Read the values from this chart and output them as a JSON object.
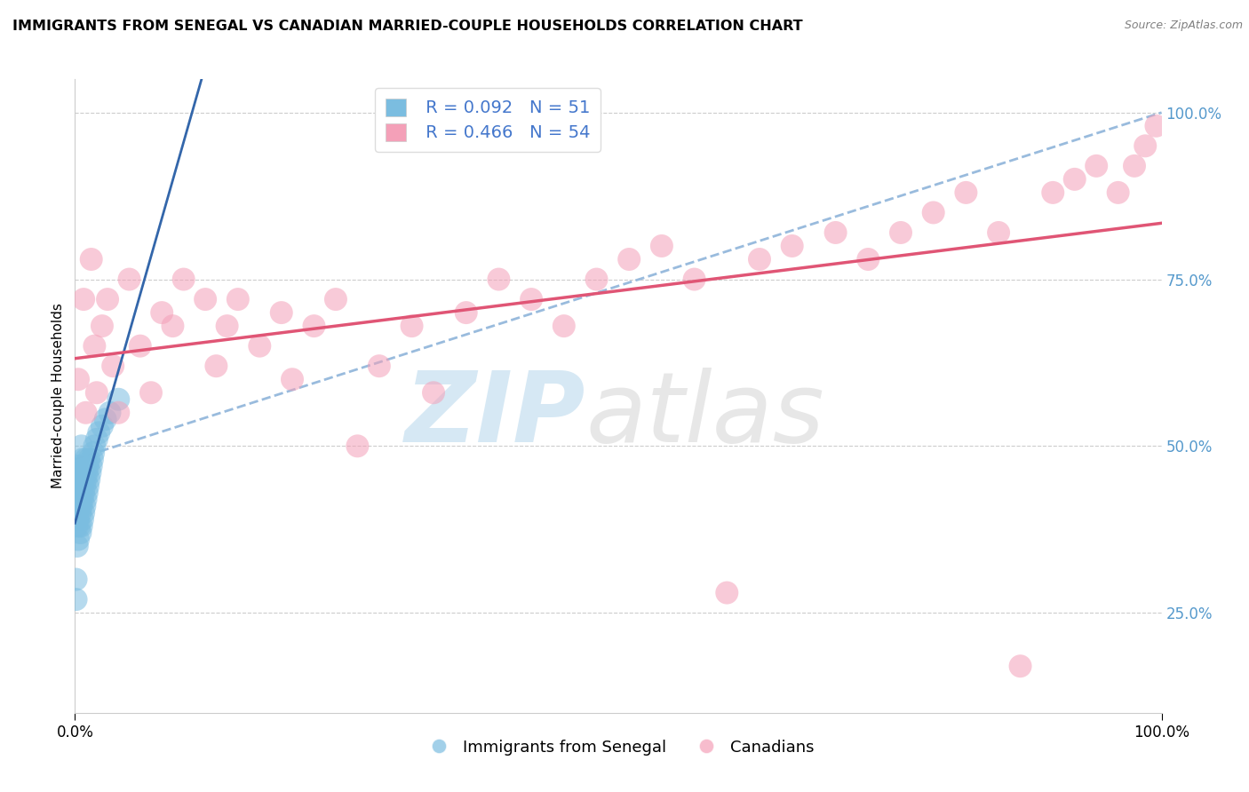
{
  "title": "IMMIGRANTS FROM SENEGAL VS CANADIAN MARRIED-COUPLE HOUSEHOLDS CORRELATION CHART",
  "source": "Source: ZipAtlas.com",
  "ylabel": "Married-couple Households",
  "R_blue": 0.092,
  "N_blue": 51,
  "R_pink": 0.466,
  "N_pink": 54,
  "blue_color": "#7bbde0",
  "pink_color": "#f4a0b8",
  "blue_line_color": "#3366aa",
  "pink_line_color": "#e05575",
  "dashed_line_color": "#99bbdd",
  "legend_label_blue": "Immigrants from Senegal",
  "legend_label_pink": "Canadians",
  "blue_scatter_x": [
    0.001,
    0.001,
    0.002,
    0.002,
    0.002,
    0.003,
    0.003,
    0.003,
    0.004,
    0.004,
    0.004,
    0.004,
    0.005,
    0.005,
    0.005,
    0.005,
    0.006,
    0.006,
    0.006,
    0.006,
    0.006,
    0.007,
    0.007,
    0.007,
    0.007,
    0.008,
    0.008,
    0.008,
    0.009,
    0.009,
    0.009,
    0.01,
    0.01,
    0.01,
    0.011,
    0.011,
    0.012,
    0.012,
    0.013,
    0.013,
    0.014,
    0.015,
    0.016,
    0.017,
    0.018,
    0.02,
    0.022,
    0.025,
    0.028,
    0.032,
    0.04
  ],
  "blue_scatter_y": [
    0.3,
    0.27,
    0.35,
    0.38,
    0.42,
    0.36,
    0.39,
    0.44,
    0.38,
    0.41,
    0.44,
    0.47,
    0.37,
    0.4,
    0.43,
    0.46,
    0.38,
    0.41,
    0.44,
    0.47,
    0.5,
    0.39,
    0.42,
    0.45,
    0.48,
    0.4,
    0.43,
    0.46,
    0.41,
    0.44,
    0.47,
    0.42,
    0.45,
    0.48,
    0.43,
    0.46,
    0.44,
    0.47,
    0.45,
    0.48,
    0.46,
    0.47,
    0.48,
    0.49,
    0.5,
    0.51,
    0.52,
    0.53,
    0.54,
    0.55,
    0.57
  ],
  "pink_scatter_x": [
    0.003,
    0.008,
    0.01,
    0.015,
    0.018,
    0.02,
    0.025,
    0.03,
    0.035,
    0.04,
    0.05,
    0.06,
    0.07,
    0.08,
    0.09,
    0.1,
    0.12,
    0.13,
    0.14,
    0.15,
    0.17,
    0.19,
    0.2,
    0.22,
    0.24,
    0.26,
    0.28,
    0.31,
    0.33,
    0.36,
    0.39,
    0.42,
    0.45,
    0.48,
    0.51,
    0.54,
    0.57,
    0.6,
    0.63,
    0.66,
    0.7,
    0.73,
    0.76,
    0.79,
    0.82,
    0.85,
    0.87,
    0.9,
    0.92,
    0.94,
    0.96,
    0.975,
    0.985,
    0.995
  ],
  "pink_scatter_y": [
    0.6,
    0.72,
    0.55,
    0.78,
    0.65,
    0.58,
    0.68,
    0.72,
    0.62,
    0.55,
    0.75,
    0.65,
    0.58,
    0.7,
    0.68,
    0.75,
    0.72,
    0.62,
    0.68,
    0.72,
    0.65,
    0.7,
    0.6,
    0.68,
    0.72,
    0.5,
    0.62,
    0.68,
    0.58,
    0.7,
    0.75,
    0.72,
    0.68,
    0.75,
    0.78,
    0.8,
    0.75,
    0.28,
    0.78,
    0.8,
    0.82,
    0.78,
    0.82,
    0.85,
    0.88,
    0.82,
    0.17,
    0.88,
    0.9,
    0.92,
    0.88,
    0.92,
    0.95,
    0.98
  ],
  "xlim": [
    0.0,
    1.0
  ],
  "ylim": [
    0.1,
    1.05
  ],
  "yticks": [
    0.25,
    0.5,
    0.75,
    1.0
  ],
  "ytick_labels": [
    "25.0%",
    "50.0%",
    "75.0%",
    "100.0%"
  ],
  "xtick_positions": [
    0.0,
    1.0
  ],
  "xtick_labels": [
    "0.0%",
    "100.0%"
  ]
}
